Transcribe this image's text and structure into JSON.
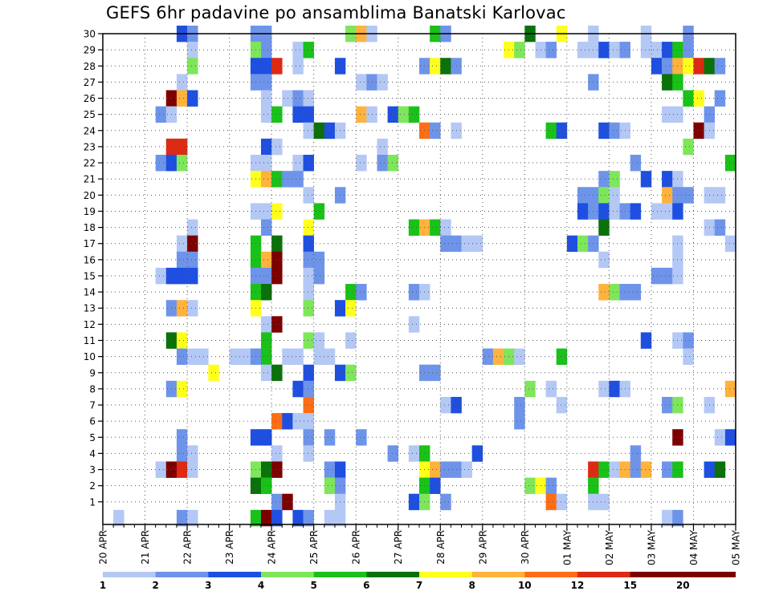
{
  "chart_data": {
    "type": "heatmap",
    "title": "GEFS 6hr padavine po ansamblima Banatski Karlovac",
    "xlabel": "",
    "ylabel": "",
    "x_tick_labels": [
      "20 APR",
      "21 APR",
      "22 APR",
      "23 APR",
      "24 APR",
      "25 APR",
      "26 APR",
      "27 APR",
      "28 APR",
      "29 APR",
      "30 APR",
      "01 MAY",
      "02 MAY",
      "03 MAY",
      "04 MAY",
      "05 MAY"
    ],
    "x_range_steps": [
      0,
      60
    ],
    "steps_per_day": 4,
    "y_tick_labels": [
      "1",
      "2",
      "3",
      "4",
      "5",
      "6",
      "7",
      "8",
      "9",
      "10",
      "11",
      "12",
      "13",
      "14",
      "15",
      "16",
      "17",
      "18",
      "19",
      "20",
      "21",
      "22",
      "23",
      "24",
      "25",
      "26",
      "27",
      "28",
      "29",
      "30"
    ],
    "y_range_members": [
      0,
      30
    ],
    "grid": true,
    "legend": "bottom",
    "colorbar": {
      "colors": [
        "#b4c8f5",
        "#6e94ea",
        "#1e4fe0",
        "#7ee65a",
        "#19c119",
        "#0b710b",
        "#ffff1e",
        "#ffb23c",
        "#ff6d14",
        "#dc2a14",
        "#7d0000"
      ],
      "tick_labels": [
        "1",
        "2",
        "3",
        "4",
        "5",
        "6",
        "7",
        "8",
        "10",
        "12",
        "15",
        "20"
      ]
    },
    "cells_note": "each entry: [member, step, color_class_index]",
    "cells": [
      [
        30,
        7,
        2
      ],
      [
        30,
        8,
        1
      ],
      [
        30,
        14,
        1
      ],
      [
        30,
        15,
        1
      ],
      [
        30,
        23,
        3
      ],
      [
        30,
        24,
        7
      ],
      [
        30,
        25,
        0
      ],
      [
        30,
        31,
        4
      ],
      [
        30,
        32,
        1
      ],
      [
        30,
        40,
        5
      ],
      [
        30,
        43,
        6
      ],
      [
        30,
        46,
        0
      ],
      [
        30,
        51,
        0
      ],
      [
        30,
        55,
        1
      ],
      [
        29,
        8,
        0
      ],
      [
        29,
        14,
        3
      ],
      [
        29,
        15,
        1
      ],
      [
        29,
        18,
        0
      ],
      [
        29,
        19,
        4
      ],
      [
        29,
        38,
        6
      ],
      [
        29,
        39,
        3
      ],
      [
        29,
        41,
        0
      ],
      [
        29,
        42,
        1
      ],
      [
        29,
        45,
        0
      ],
      [
        29,
        46,
        0
      ],
      [
        29,
        47,
        2
      ],
      [
        29,
        48,
        0
      ],
      [
        29,
        49,
        1
      ],
      [
        29,
        51,
        0
      ],
      [
        29,
        52,
        0
      ],
      [
        29,
        53,
        2
      ],
      [
        29,
        54,
        4
      ],
      [
        29,
        55,
        1
      ],
      [
        28,
        8,
        3
      ],
      [
        28,
        14,
        2
      ],
      [
        28,
        15,
        2
      ],
      [
        28,
        16,
        9
      ],
      [
        28,
        18,
        0
      ],
      [
        28,
        22,
        2
      ],
      [
        28,
        30,
        1
      ],
      [
        28,
        31,
        6
      ],
      [
        28,
        32,
        5
      ],
      [
        28,
        33,
        1
      ],
      [
        28,
        52,
        2
      ],
      [
        28,
        53,
        1
      ],
      [
        28,
        54,
        7
      ],
      [
        28,
        55,
        6
      ],
      [
        28,
        56,
        9
      ],
      [
        28,
        57,
        5
      ],
      [
        28,
        58,
        1
      ],
      [
        27,
        7,
        0
      ],
      [
        27,
        14,
        1
      ],
      [
        27,
        15,
        1
      ],
      [
        27,
        24,
        0
      ],
      [
        27,
        25,
        1
      ],
      [
        27,
        26,
        0
      ],
      [
        27,
        46,
        1
      ],
      [
        27,
        53,
        5
      ],
      [
        27,
        54,
        4
      ],
      [
        26,
        6,
        10
      ],
      [
        26,
        7,
        7
      ],
      [
        26,
        8,
        2
      ],
      [
        26,
        15,
        0
      ],
      [
        26,
        17,
        0
      ],
      [
        26,
        18,
        1
      ],
      [
        26,
        19,
        0
      ],
      [
        26,
        55,
        4
      ],
      [
        26,
        56,
        6
      ],
      [
        26,
        58,
        1
      ],
      [
        25,
        5,
        1
      ],
      [
        25,
        6,
        0
      ],
      [
        25,
        15,
        0
      ],
      [
        25,
        16,
        4
      ],
      [
        25,
        18,
        2
      ],
      [
        25,
        19,
        2
      ],
      [
        25,
        24,
        7
      ],
      [
        25,
        25,
        0
      ],
      [
        25,
        27,
        2
      ],
      [
        25,
        28,
        3
      ],
      [
        25,
        29,
        4
      ],
      [
        25,
        53,
        0
      ],
      [
        25,
        54,
        0
      ],
      [
        25,
        57,
        1
      ],
      [
        24,
        19,
        0
      ],
      [
        24,
        20,
        5
      ],
      [
        24,
        21,
        2
      ],
      [
        24,
        22,
        0
      ],
      [
        24,
        30,
        8
      ],
      [
        24,
        31,
        1
      ],
      [
        24,
        33,
        0
      ],
      [
        24,
        42,
        4
      ],
      [
        24,
        43,
        2
      ],
      [
        24,
        47,
        2
      ],
      [
        24,
        48,
        1
      ],
      [
        24,
        49,
        0
      ],
      [
        24,
        56,
        10
      ],
      [
        24,
        57,
        0
      ],
      [
        23,
        6,
        9
      ],
      [
        23,
        7,
        9
      ],
      [
        23,
        15,
        2
      ],
      [
        23,
        16,
        0
      ],
      [
        23,
        26,
        0
      ],
      [
        23,
        55,
        3
      ],
      [
        22,
        5,
        1
      ],
      [
        22,
        6,
        2
      ],
      [
        22,
        7,
        3
      ],
      [
        22,
        14,
        0
      ],
      [
        22,
        15,
        0
      ],
      [
        22,
        18,
        0
      ],
      [
        22,
        19,
        2
      ],
      [
        22,
        24,
        0
      ],
      [
        22,
        26,
        1
      ],
      [
        22,
        27,
        3
      ],
      [
        22,
        50,
        1
      ],
      [
        22,
        59,
        4
      ],
      [
        21,
        14,
        6
      ],
      [
        21,
        15,
        7
      ],
      [
        21,
        16,
        4
      ],
      [
        21,
        17,
        1
      ],
      [
        21,
        18,
        1
      ],
      [
        21,
        47,
        1
      ],
      [
        21,
        48,
        3
      ],
      [
        21,
        51,
        2
      ],
      [
        21,
        53,
        2
      ],
      [
        21,
        54,
        0
      ],
      [
        20,
        19,
        0
      ],
      [
        20,
        22,
        1
      ],
      [
        20,
        45,
        1
      ],
      [
        20,
        46,
        1
      ],
      [
        20,
        47,
        3
      ],
      [
        20,
        48,
        0
      ],
      [
        20,
        53,
        7
      ],
      [
        20,
        54,
        1
      ],
      [
        20,
        55,
        1
      ],
      [
        20,
        57,
        0
      ],
      [
        20,
        58,
        0
      ],
      [
        19,
        14,
        0
      ],
      [
        19,
        15,
        0
      ],
      [
        19,
        16,
        6
      ],
      [
        19,
        20,
        4
      ],
      [
        19,
        45,
        2
      ],
      [
        19,
        46,
        1
      ],
      [
        19,
        47,
        2
      ],
      [
        19,
        48,
        0
      ],
      [
        19,
        49,
        1
      ],
      [
        19,
        50,
        2
      ],
      [
        19,
        52,
        0
      ],
      [
        19,
        53,
        0
      ],
      [
        19,
        54,
        2
      ],
      [
        18,
        8,
        0
      ],
      [
        18,
        15,
        1
      ],
      [
        18,
        19,
        6
      ],
      [
        18,
        29,
        4
      ],
      [
        18,
        30,
        7
      ],
      [
        18,
        31,
        4
      ],
      [
        18,
        32,
        0
      ],
      [
        18,
        47,
        5
      ],
      [
        18,
        57,
        0
      ],
      [
        18,
        58,
        1
      ],
      [
        17,
        7,
        0
      ],
      [
        17,
        8,
        10
      ],
      [
        17,
        14,
        4
      ],
      [
        17,
        16,
        5
      ],
      [
        17,
        19,
        2
      ],
      [
        17,
        32,
        1
      ],
      [
        17,
        33,
        1
      ],
      [
        17,
        34,
        0
      ],
      [
        17,
        35,
        0
      ],
      [
        17,
        44,
        2
      ],
      [
        17,
        45,
        3
      ],
      [
        17,
        46,
        1
      ],
      [
        17,
        54,
        0
      ],
      [
        17,
        59,
        0
      ],
      [
        16,
        7,
        1
      ],
      [
        16,
        8,
        1
      ],
      [
        16,
        14,
        4
      ],
      [
        16,
        15,
        7
      ],
      [
        16,
        16,
        10
      ],
      [
        16,
        19,
        1
      ],
      [
        16,
        20,
        1
      ],
      [
        16,
        47,
        0
      ],
      [
        16,
        54,
        0
      ],
      [
        15,
        5,
        0
      ],
      [
        15,
        6,
        2
      ],
      [
        15,
        7,
        2
      ],
      [
        15,
        8,
        2
      ],
      [
        15,
        14,
        1
      ],
      [
        15,
        15,
        1
      ],
      [
        15,
        16,
        10
      ],
      [
        15,
        19,
        0
      ],
      [
        15,
        20,
        1
      ],
      [
        15,
        52,
        1
      ],
      [
        15,
        53,
        1
      ],
      [
        15,
        54,
        0
      ],
      [
        14,
        14,
        4
      ],
      [
        14,
        15,
        5
      ],
      [
        14,
        19,
        0
      ],
      [
        14,
        23,
        4
      ],
      [
        14,
        24,
        1
      ],
      [
        14,
        29,
        1
      ],
      [
        14,
        30,
        0
      ],
      [
        14,
        47,
        7
      ],
      [
        14,
        48,
        3
      ],
      [
        14,
        49,
        1
      ],
      [
        14,
        50,
        1
      ],
      [
        13,
        6,
        1
      ],
      [
        13,
        7,
        7
      ],
      [
        13,
        8,
        0
      ],
      [
        13,
        14,
        6
      ],
      [
        13,
        19,
        3
      ],
      [
        13,
        22,
        2
      ],
      [
        13,
        23,
        6
      ],
      [
        12,
        15,
        0
      ],
      [
        12,
        16,
        10
      ],
      [
        12,
        29,
        0
      ],
      [
        11,
        6,
        5
      ],
      [
        11,
        7,
        6
      ],
      [
        11,
        15,
        4
      ],
      [
        11,
        19,
        3
      ],
      [
        11,
        20,
        0
      ],
      [
        11,
        23,
        0
      ],
      [
        11,
        51,
        2
      ],
      [
        11,
        54,
        0
      ],
      [
        11,
        55,
        1
      ],
      [
        10,
        7,
        1
      ],
      [
        10,
        8,
        0
      ],
      [
        10,
        9,
        0
      ],
      [
        10,
        12,
        0
      ],
      [
        10,
        13,
        0
      ],
      [
        10,
        14,
        1
      ],
      [
        10,
        15,
        4
      ],
      [
        10,
        17,
        0
      ],
      [
        10,
        18,
        0
      ],
      [
        10,
        20,
        0
      ],
      [
        10,
        21,
        0
      ],
      [
        10,
        36,
        1
      ],
      [
        10,
        37,
        7
      ],
      [
        10,
        38,
        3
      ],
      [
        10,
        39,
        0
      ],
      [
        10,
        43,
        4
      ],
      [
        10,
        55,
        0
      ],
      [
        9,
        10,
        6
      ],
      [
        9,
        15,
        0
      ],
      [
        9,
        16,
        5
      ],
      [
        9,
        19,
        2
      ],
      [
        9,
        22,
        2
      ],
      [
        9,
        23,
        3
      ],
      [
        9,
        30,
        1
      ],
      [
        9,
        31,
        1
      ],
      [
        8,
        6,
        1
      ],
      [
        8,
        7,
        6
      ],
      [
        8,
        18,
        2
      ],
      [
        8,
        19,
        1
      ],
      [
        8,
        40,
        3
      ],
      [
        8,
        42,
        0
      ],
      [
        8,
        47,
        0
      ],
      [
        8,
        48,
        2
      ],
      [
        8,
        49,
        0
      ],
      [
        8,
        59,
        7
      ],
      [
        7,
        19,
        8
      ],
      [
        7,
        32,
        0
      ],
      [
        7,
        33,
        2
      ],
      [
        7,
        39,
        1
      ],
      [
        7,
        43,
        0
      ],
      [
        7,
        53,
        1
      ],
      [
        7,
        54,
        3
      ],
      [
        7,
        57,
        0
      ],
      [
        6,
        16,
        8
      ],
      [
        6,
        17,
        2
      ],
      [
        6,
        18,
        0
      ],
      [
        6,
        19,
        0
      ],
      [
        6,
        39,
        1
      ],
      [
        5,
        7,
        1
      ],
      [
        5,
        14,
        2
      ],
      [
        5,
        15,
        2
      ],
      [
        5,
        19,
        1
      ],
      [
        5,
        21,
        1
      ],
      [
        5,
        24,
        1
      ],
      [
        5,
        54,
        10
      ],
      [
        5,
        58,
        0
      ],
      [
        5,
        59,
        2
      ],
      [
        4,
        7,
        1
      ],
      [
        4,
        8,
        0
      ],
      [
        4,
        16,
        0
      ],
      [
        4,
        19,
        0
      ],
      [
        4,
        27,
        1
      ],
      [
        4,
        29,
        0
      ],
      [
        4,
        30,
        4
      ],
      [
        4,
        35,
        2
      ],
      [
        4,
        50,
        1
      ],
      [
        3,
        5,
        0
      ],
      [
        3,
        6,
        10
      ],
      [
        3,
        7,
        9
      ],
      [
        3,
        8,
        0
      ],
      [
        3,
        14,
        3
      ],
      [
        3,
        15,
        5
      ],
      [
        3,
        16,
        10
      ],
      [
        3,
        21,
        1
      ],
      [
        3,
        22,
        2
      ],
      [
        3,
        30,
        6
      ],
      [
        3,
        31,
        7
      ],
      [
        3,
        32,
        1
      ],
      [
        3,
        33,
        1
      ],
      [
        3,
        34,
        0
      ],
      [
        3,
        46,
        9
      ],
      [
        3,
        47,
        4
      ],
      [
        3,
        48,
        0
      ],
      [
        3,
        49,
        7
      ],
      [
        3,
        50,
        1
      ],
      [
        3,
        51,
        7
      ],
      [
        3,
        53,
        1
      ],
      [
        3,
        54,
        4
      ],
      [
        3,
        57,
        2
      ],
      [
        3,
        58,
        5
      ],
      [
        2,
        14,
        5
      ],
      [
        2,
        15,
        4
      ],
      [
        2,
        21,
        3
      ],
      [
        2,
        22,
        1
      ],
      [
        2,
        30,
        4
      ],
      [
        2,
        31,
        2
      ],
      [
        2,
        40,
        3
      ],
      [
        2,
        41,
        6
      ],
      [
        2,
        42,
        1
      ],
      [
        2,
        46,
        4
      ],
      [
        1,
        16,
        1
      ],
      [
        1,
        17,
        10
      ],
      [
        1,
        22,
        0
      ],
      [
        1,
        29,
        2
      ],
      [
        1,
        30,
        3
      ],
      [
        1,
        32,
        1
      ],
      [
        1,
        42,
        8
      ],
      [
        1,
        43,
        0
      ],
      [
        1,
        46,
        0
      ],
      [
        1,
        47,
        0
      ],
      [
        0,
        1,
        0
      ],
      [
        0,
        7,
        1
      ],
      [
        0,
        8,
        0
      ],
      [
        0,
        14,
        4
      ],
      [
        0,
        15,
        10
      ],
      [
        0,
        16,
        2
      ],
      [
        0,
        18,
        2
      ],
      [
        0,
        19,
        1
      ],
      [
        0,
        21,
        0
      ],
      [
        0,
        22,
        0
      ],
      [
        0,
        53,
        0
      ],
      [
        0,
        54,
        1
      ]
    ]
  }
}
